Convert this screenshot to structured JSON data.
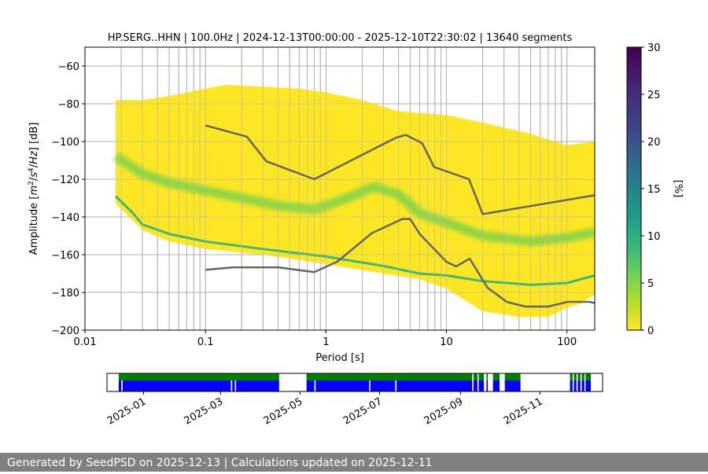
{
  "chart_data": {
    "type": "heatmap",
    "title": "HP.SERG..HHN | 100.0Hz | 2024-12-13T00:00:00 - 2025-12-10T22:30:02 | 13640 segments",
    "xlabel": "Period [s]",
    "ylabel": "Amplitude [m²/s⁴/Hz] [dB]",
    "xscale": "log",
    "xlim": [
      0.01,
      170
    ],
    "ylim": [
      -200,
      -50
    ],
    "x_ticks": [
      "0.01",
      "0.1",
      "1",
      "10",
      "100"
    ],
    "y_ticks": [
      "−60",
      "−80",
      "−100",
      "−120",
      "−140",
      "−160",
      "−180",
      "−200"
    ],
    "colorbar": {
      "label": "[%]",
      "range": [
        0,
        30
      ],
      "ticks": [
        "0",
        "5",
        "10",
        "15",
        "20",
        "25",
        "30"
      ],
      "colormap": "viridis"
    },
    "grid": true,
    "psd_extent": {
      "period_range": [
        0.018,
        170
      ],
      "upper": [
        {
          "x": 0.018,
          "y": -78
        },
        {
          "x": 0.03,
          "y": -78
        },
        {
          "x": 0.05,
          "y": -76
        },
        {
          "x": 0.1,
          "y": -72
        },
        {
          "x": 0.15,
          "y": -70
        },
        {
          "x": 0.3,
          "y": -71
        },
        {
          "x": 0.6,
          "y": -72
        },
        {
          "x": 1,
          "y": -74
        },
        {
          "x": 2,
          "y": -78
        },
        {
          "x": 4,
          "y": -84
        },
        {
          "x": 10,
          "y": -86
        },
        {
          "x": 20,
          "y": -90
        },
        {
          "x": 50,
          "y": -96
        },
        {
          "x": 100,
          "y": -102
        },
        {
          "x": 170,
          "y": -100
        }
      ],
      "lower": [
        {
          "x": 0.018,
          "y": -133
        },
        {
          "x": 0.03,
          "y": -147
        },
        {
          "x": 0.05,
          "y": -153
        },
        {
          "x": 0.1,
          "y": -157
        },
        {
          "x": 0.3,
          "y": -160
        },
        {
          "x": 1,
          "y": -165
        },
        {
          "x": 3,
          "y": -170
        },
        {
          "x": 6,
          "y": -173
        },
        {
          "x": 10,
          "y": -178
        },
        {
          "x": 20,
          "y": -190
        },
        {
          "x": 40,
          "y": -193
        },
        {
          "x": 70,
          "y": -193
        },
        {
          "x": 100,
          "y": -188
        },
        {
          "x": 130,
          "y": -186
        },
        {
          "x": 170,
          "y": -181
        }
      ]
    },
    "density_ridges": [
      {
        "name": "mode",
        "points": [
          {
            "x": 0.018,
            "y": -108
          },
          {
            "x": 0.03,
            "y": -117
          },
          {
            "x": 0.05,
            "y": -122
          },
          {
            "x": 0.1,
            "y": -126
          },
          {
            "x": 0.2,
            "y": -130
          },
          {
            "x": 0.4,
            "y": -134
          },
          {
            "x": 0.8,
            "y": -136
          },
          {
            "x": 1.5,
            "y": -130
          },
          {
            "x": 2.5,
            "y": -124
          },
          {
            "x": 4,
            "y": -128
          },
          {
            "x": 6,
            "y": -138
          },
          {
            "x": 10,
            "y": -143
          },
          {
            "x": 20,
            "y": -150
          },
          {
            "x": 50,
            "y": -153
          },
          {
            "x": 100,
            "y": -151
          },
          {
            "x": 170,
            "y": -148
          }
        ]
      },
      {
        "name": "floor",
        "points": [
          {
            "x": 0.018,
            "y": -129
          },
          {
            "x": 0.025,
            "y": -138
          },
          {
            "x": 0.03,
            "y": -144
          },
          {
            "x": 0.05,
            "y": -149
          },
          {
            "x": 0.1,
            "y": -153
          },
          {
            "x": 0.3,
            "y": -157
          },
          {
            "x": 1,
            "y": -161
          },
          {
            "x": 3,
            "y": -166
          },
          {
            "x": 6,
            "y": -170
          },
          {
            "x": 10,
            "y": -171
          },
          {
            "x": 20,
            "y": -174
          },
          {
            "x": 50,
            "y": -176
          },
          {
            "x": 100,
            "y": -175
          },
          {
            "x": 170,
            "y": -171
          }
        ]
      }
    ],
    "noise_models": {
      "high": [
        {
          "x": 0.1,
          "y": -91.5
        },
        {
          "x": 0.22,
          "y": -97.4
        },
        {
          "x": 0.32,
          "y": -110.5
        },
        {
          "x": 0.8,
          "y": -120
        },
        {
          "x": 3.8,
          "y": -98
        },
        {
          "x": 4.6,
          "y": -96.5
        },
        {
          "x": 6.3,
          "y": -101
        },
        {
          "x": 7.9,
          "y": -113.5
        },
        {
          "x": 15.4,
          "y": -120
        },
        {
          "x": 20,
          "y": -138.5
        },
        {
          "x": 170,
          "y": -128.5
        }
      ],
      "low": [
        {
          "x": 0.1,
          "y": -168
        },
        {
          "x": 0.17,
          "y": -166.7
        },
        {
          "x": 0.4,
          "y": -166.7
        },
        {
          "x": 0.8,
          "y": -169.2
        },
        {
          "x": 1.24,
          "y": -163.7
        },
        {
          "x": 2.4,
          "y": -148.6
        },
        {
          "x": 4.3,
          "y": -141.1
        },
        {
          "x": 5,
          "y": -141.1
        },
        {
          "x": 6,
          "y": -149
        },
        {
          "x": 10,
          "y": -163.8
        },
        {
          "x": 12,
          "y": -166.2
        },
        {
          "x": 15.6,
          "y": -162.1
        },
        {
          "x": 21.9,
          "y": -177.5
        },
        {
          "x": 31.6,
          "y": -185
        },
        {
          "x": 45,
          "y": -187.5
        },
        {
          "x": 70,
          "y": -187.5
        },
        {
          "x": 101,
          "y": -185
        },
        {
          "x": 154,
          "y": -185
        },
        {
          "x": 170,
          "y": -185.7
        }
      ]
    },
    "timeline": {
      "x_ticks": [
        "2025-01",
        "2025-03",
        "2025-05",
        "2025-07",
        "2025-09",
        "2025-11"
      ],
      "x_tick_dates": [
        "2025-01-01",
        "2025-03-01",
        "2025-05-01",
        "2025-07-01",
        "2025-09-01",
        "2025-11-01"
      ],
      "xlim": [
        "2024-12-04",
        "2025-12-19"
      ],
      "rows": [
        {
          "name": "data",
          "color": "#008000",
          "intervals": [
            [
              "2024-12-13",
              "2025-04-15"
            ],
            [
              "2025-05-06",
              "2025-09-10"
            ],
            [
              "2025-09-11",
              "2025-09-14"
            ],
            [
              "2025-09-15",
              "2025-09-19"
            ],
            [
              "2025-09-21",
              "2025-09-22"
            ],
            [
              "2025-09-26",
              "2025-10-01"
            ],
            [
              "2025-10-05",
              "2025-10-17"
            ],
            [
              "2025-11-24",
              "2025-11-26"
            ],
            [
              "2025-11-27",
              "2025-11-29"
            ],
            [
              "2025-11-30",
              "2025-12-02"
            ],
            [
              "2025-12-03",
              "2025-12-05"
            ],
            [
              "2025-12-06",
              "2025-12-10"
            ]
          ]
        },
        {
          "name": "segments",
          "color": "#0000ff",
          "intervals": [
            [
              "2024-12-13",
              "2024-12-15"
            ],
            [
              "2024-12-16",
              "2025-03-09"
            ],
            [
              "2025-03-10",
              "2025-03-12"
            ],
            [
              "2025-03-13",
              "2025-04-15"
            ],
            [
              "2025-05-06",
              "2025-05-12"
            ],
            [
              "2025-05-13",
              "2025-06-23"
            ],
            [
              "2025-06-24",
              "2025-07-13"
            ],
            [
              "2025-07-14",
              "2025-09-10"
            ],
            [
              "2025-09-11",
              "2025-09-14"
            ],
            [
              "2025-09-15",
              "2025-09-19"
            ],
            [
              "2025-09-21",
              "2025-09-22"
            ],
            [
              "2025-09-26",
              "2025-10-01"
            ],
            [
              "2025-10-05",
              "2025-10-17"
            ],
            [
              "2025-11-24",
              "2025-11-26"
            ],
            [
              "2025-11-27",
              "2025-11-29"
            ],
            [
              "2025-11-30",
              "2025-12-02"
            ],
            [
              "2025-12-03",
              "2025-12-05"
            ],
            [
              "2025-12-06",
              "2025-12-10"
            ]
          ]
        }
      ]
    }
  },
  "colors": {
    "noise_model": "#666666",
    "grid": "#b0b0b0",
    "data_availability": "#008000",
    "segments": "#0000ff",
    "footer_bg": "#808080"
  },
  "footer": {
    "text": "Generated by SeedPSD on 2025-12-13 | Calculations updated on 2025-12-11"
  }
}
